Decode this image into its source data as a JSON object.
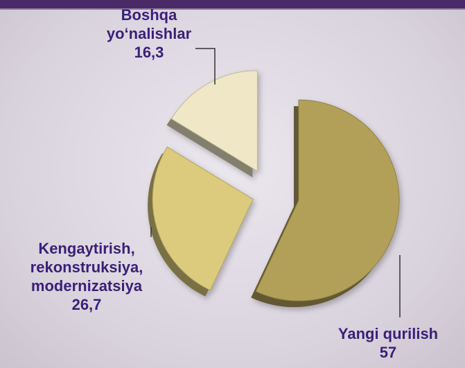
{
  "chart_data": {
    "type": "pie",
    "categories": [
      "Yangi qurilish",
      "Kengaytirish, rekonstruksiya, modernizatsiya",
      "Boshqa yo‘nalishlar"
    ],
    "values": [
      57,
      26.7,
      16.3
    ],
    "value_labels": [
      "57",
      "26,7",
      "16,3"
    ],
    "colors": [
      "#b3a059",
      "#dccb7c",
      "#efe7c6"
    ]
  }
}
